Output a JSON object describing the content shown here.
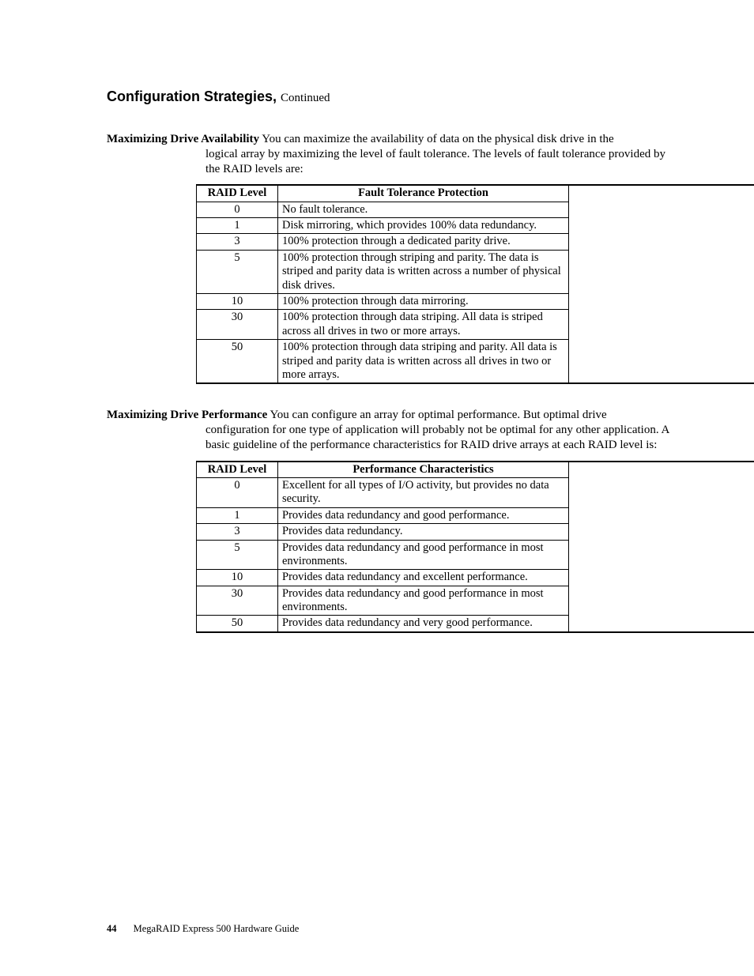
{
  "heading": {
    "title": "Configuration Strategies,",
    "continued": "Continued"
  },
  "section1": {
    "label": "Maximizing Drive Availability",
    "text_inline": " You can maximize the availability of data on the physical disk drive in the",
    "text_cont": "logical array by maximizing the level of fault tolerance. The levels of fault tolerance provided by the RAID levels are:"
  },
  "table1": {
    "col1": "RAID Level",
    "col2": "Fault Tolerance Protection",
    "rows": [
      {
        "level": "0",
        "desc": "No fault tolerance."
      },
      {
        "level": "1",
        "desc": "Disk mirroring, which provides 100% data redundancy."
      },
      {
        "level": "3",
        "desc": "100% protection through a dedicated parity drive."
      },
      {
        "level": "5",
        "desc": "100% protection through striping and parity. The data is striped and parity data is written across a number of physical disk drives."
      },
      {
        "level": "10",
        "desc": "100% protection through data mirroring."
      },
      {
        "level": "30",
        "desc": "100% protection through data striping. All data is striped across all drives in two or more arrays."
      },
      {
        "level": "50",
        "desc": "100% protection through data striping and parity. All data is striped and parity data is written across all drives in two or more arrays."
      }
    ]
  },
  "section2": {
    "label": "Maximizing Drive Performance",
    "text_inline": " You can configure an array for optimal performance. But optimal drive",
    "text_cont": "configuration for one type of application will probably not be optimal for any other application. A basic guideline of the performance characteristics for RAID drive arrays at each RAID level is:"
  },
  "table2": {
    "col1": "RAID Level",
    "col2": "Performance Characteristics",
    "rows": [
      {
        "level": "0",
        "desc": "Excellent for all types of I/O activity, but provides no data security."
      },
      {
        "level": "1",
        "desc": "Provides data redundancy and good performance."
      },
      {
        "level": "3",
        "desc": "Provides data redundancy."
      },
      {
        "level": "5",
        "desc": "Provides data redundancy and good performance in most environments."
      },
      {
        "level": "10",
        "desc": "Provides data redundancy and excellent performance."
      },
      {
        "level": "30",
        "desc": "Provides data redundancy and good performance in most environments."
      },
      {
        "level": "50",
        "desc": "Provides data redundancy and very good performance."
      }
    ]
  },
  "footer": {
    "page": "44",
    "doc": "MegaRAID Express 500 Hardware Guide"
  }
}
